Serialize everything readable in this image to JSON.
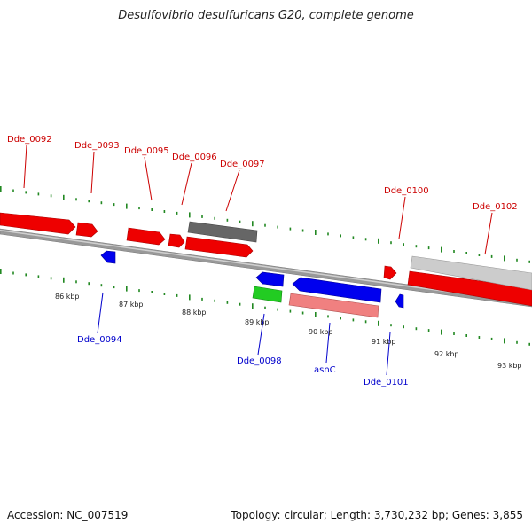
{
  "title": "Desulfovibrio desulfuricans G20, complete genome",
  "accession": "Accession: NC_007519",
  "topology": "Topology: circular; Length: 3,730,232 bp; Genes: 3,855",
  "colors": {
    "forward_gene": "#ff0000",
    "reverse_gene": "#0000ee",
    "rna_gene": "#22cc22",
    "pseudo_forward": "#666666",
    "pseudo_light": "#c8c8c8",
    "pseudo_reverse": "#f08080",
    "tick": "#228822",
    "upper_label": "#cc0000",
    "lower_label": "#0000cc",
    "backbone": "#888888"
  },
  "upper_labels": [
    "Dde_0092",
    "Dde_0093",
    "Dde_0095",
    "Dde_0096",
    "Dde_0097",
    "Dde_0100",
    "Dde_0102"
  ],
  "lower_labels": [
    "Dde_0094",
    "Dde_0098",
    "asnC",
    "Dde_0101"
  ],
  "kbp_labels": [
    "86 kbp",
    "87 kbp",
    "88 kbp",
    "89 kbp",
    "90 kbp",
    "91 kbp",
    "92 kbp",
    "93 kbp"
  ]
}
